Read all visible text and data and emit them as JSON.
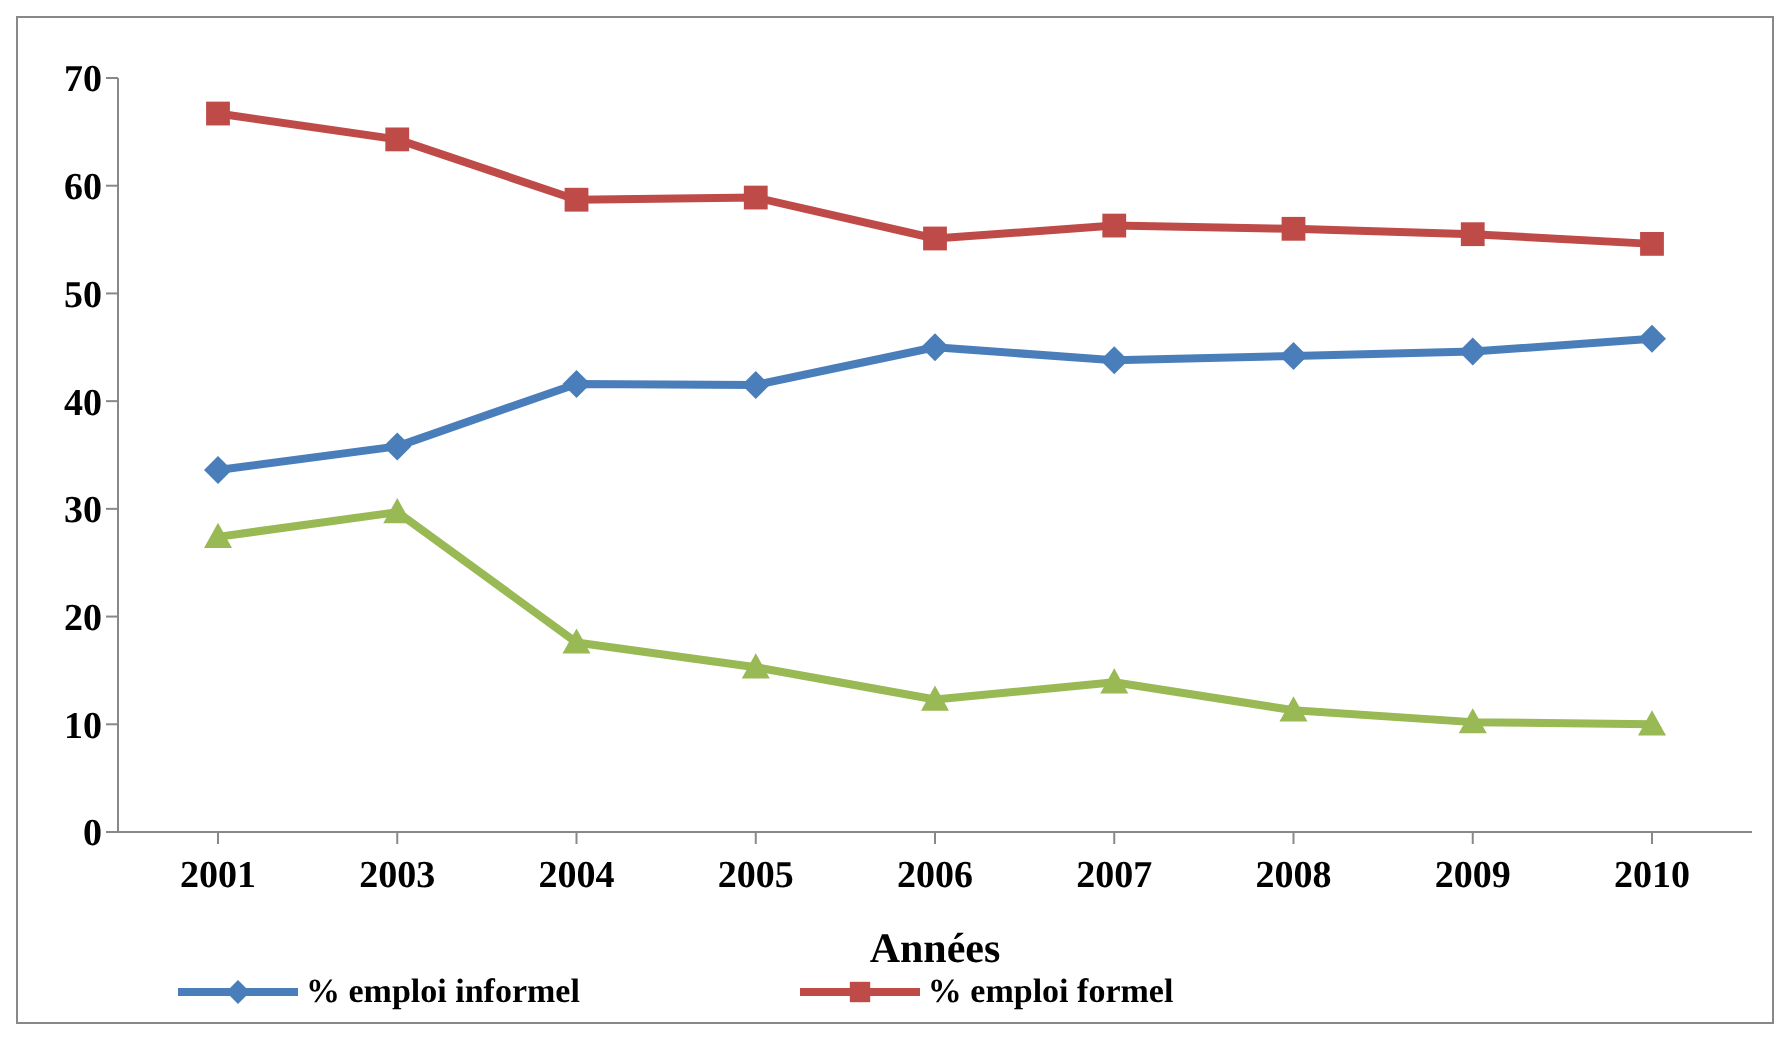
{
  "chart_data": {
    "type": "line",
    "xlabel": "Années",
    "categories": [
      "2001",
      "2003",
      "2004",
      "2005",
      "2006",
      "2007",
      "2008",
      "2009",
      "2010"
    ],
    "series": [
      {
        "name": "% emploi informel",
        "color": "#4a7ebb",
        "marker": "diamond",
        "values": [
          33.6,
          35.8,
          41.6,
          41.5,
          45.0,
          43.8,
          44.2,
          44.6,
          45.8
        ]
      },
      {
        "name": "% emploi formel",
        "color": "#be4b48",
        "marker": "square",
        "values": [
          66.7,
          64.3,
          58.7,
          58.9,
          55.1,
          56.3,
          56.0,
          55.5,
          54.6
        ]
      },
      {
        "color": "#98b954",
        "marker": "triangle",
        "values": [
          27.4,
          29.7,
          17.6,
          15.3,
          12.3,
          13.9,
          11.3,
          10.2,
          10.0
        ]
      }
    ],
    "ylim": [
      0,
      70
    ],
    "yticks": [
      0,
      10,
      20,
      30,
      40,
      50,
      60,
      70
    ],
    "grid": false,
    "legend": "bottom"
  }
}
